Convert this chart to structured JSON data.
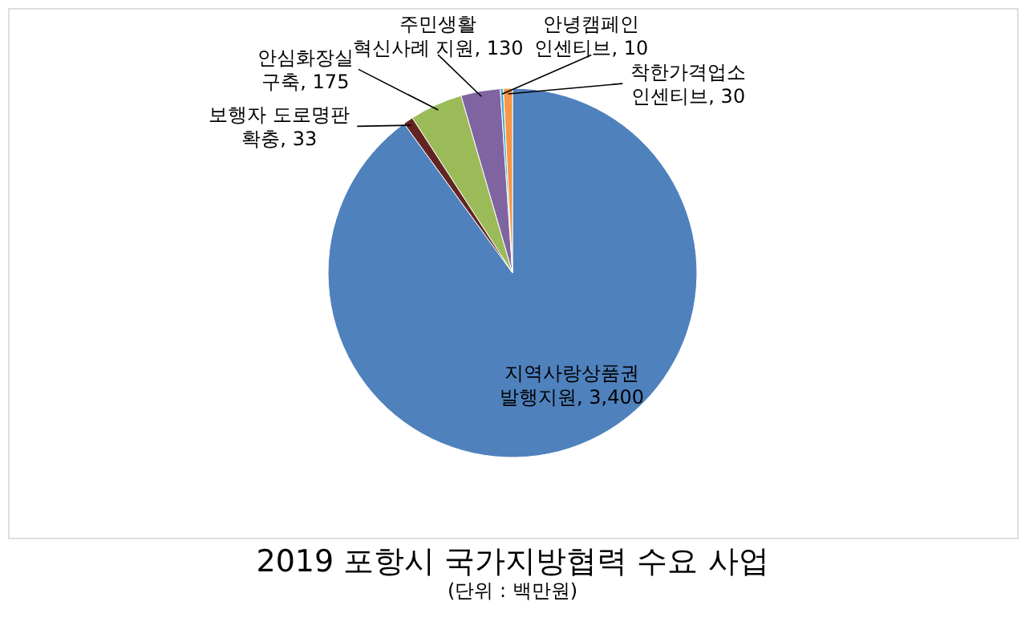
{
  "chart_data": {
    "type": "pie",
    "title": "2019 포항시 국가지방협력 수요 사업",
    "subtitle": "(단위 : 백만원)",
    "categories": [
      "지역사랑상품권\n발행지원",
      "보행자 도로명판\n확충",
      "안심화장실\n구축",
      "주민생활\n혁신사례 지원",
      "안녕캠페인\n인센티브",
      "착한가격업소\n인센티브"
    ],
    "values": [
      3400,
      33,
      175,
      130,
      10,
      30
    ],
    "value_labels": [
      "3,400",
      "33",
      "175",
      "130",
      "10",
      "30"
    ],
    "colors": [
      "#4f81bd",
      "#632523",
      "#9bbb59",
      "#8064a2",
      "#4bacc6",
      "#f79646"
    ],
    "legend": false
  }
}
